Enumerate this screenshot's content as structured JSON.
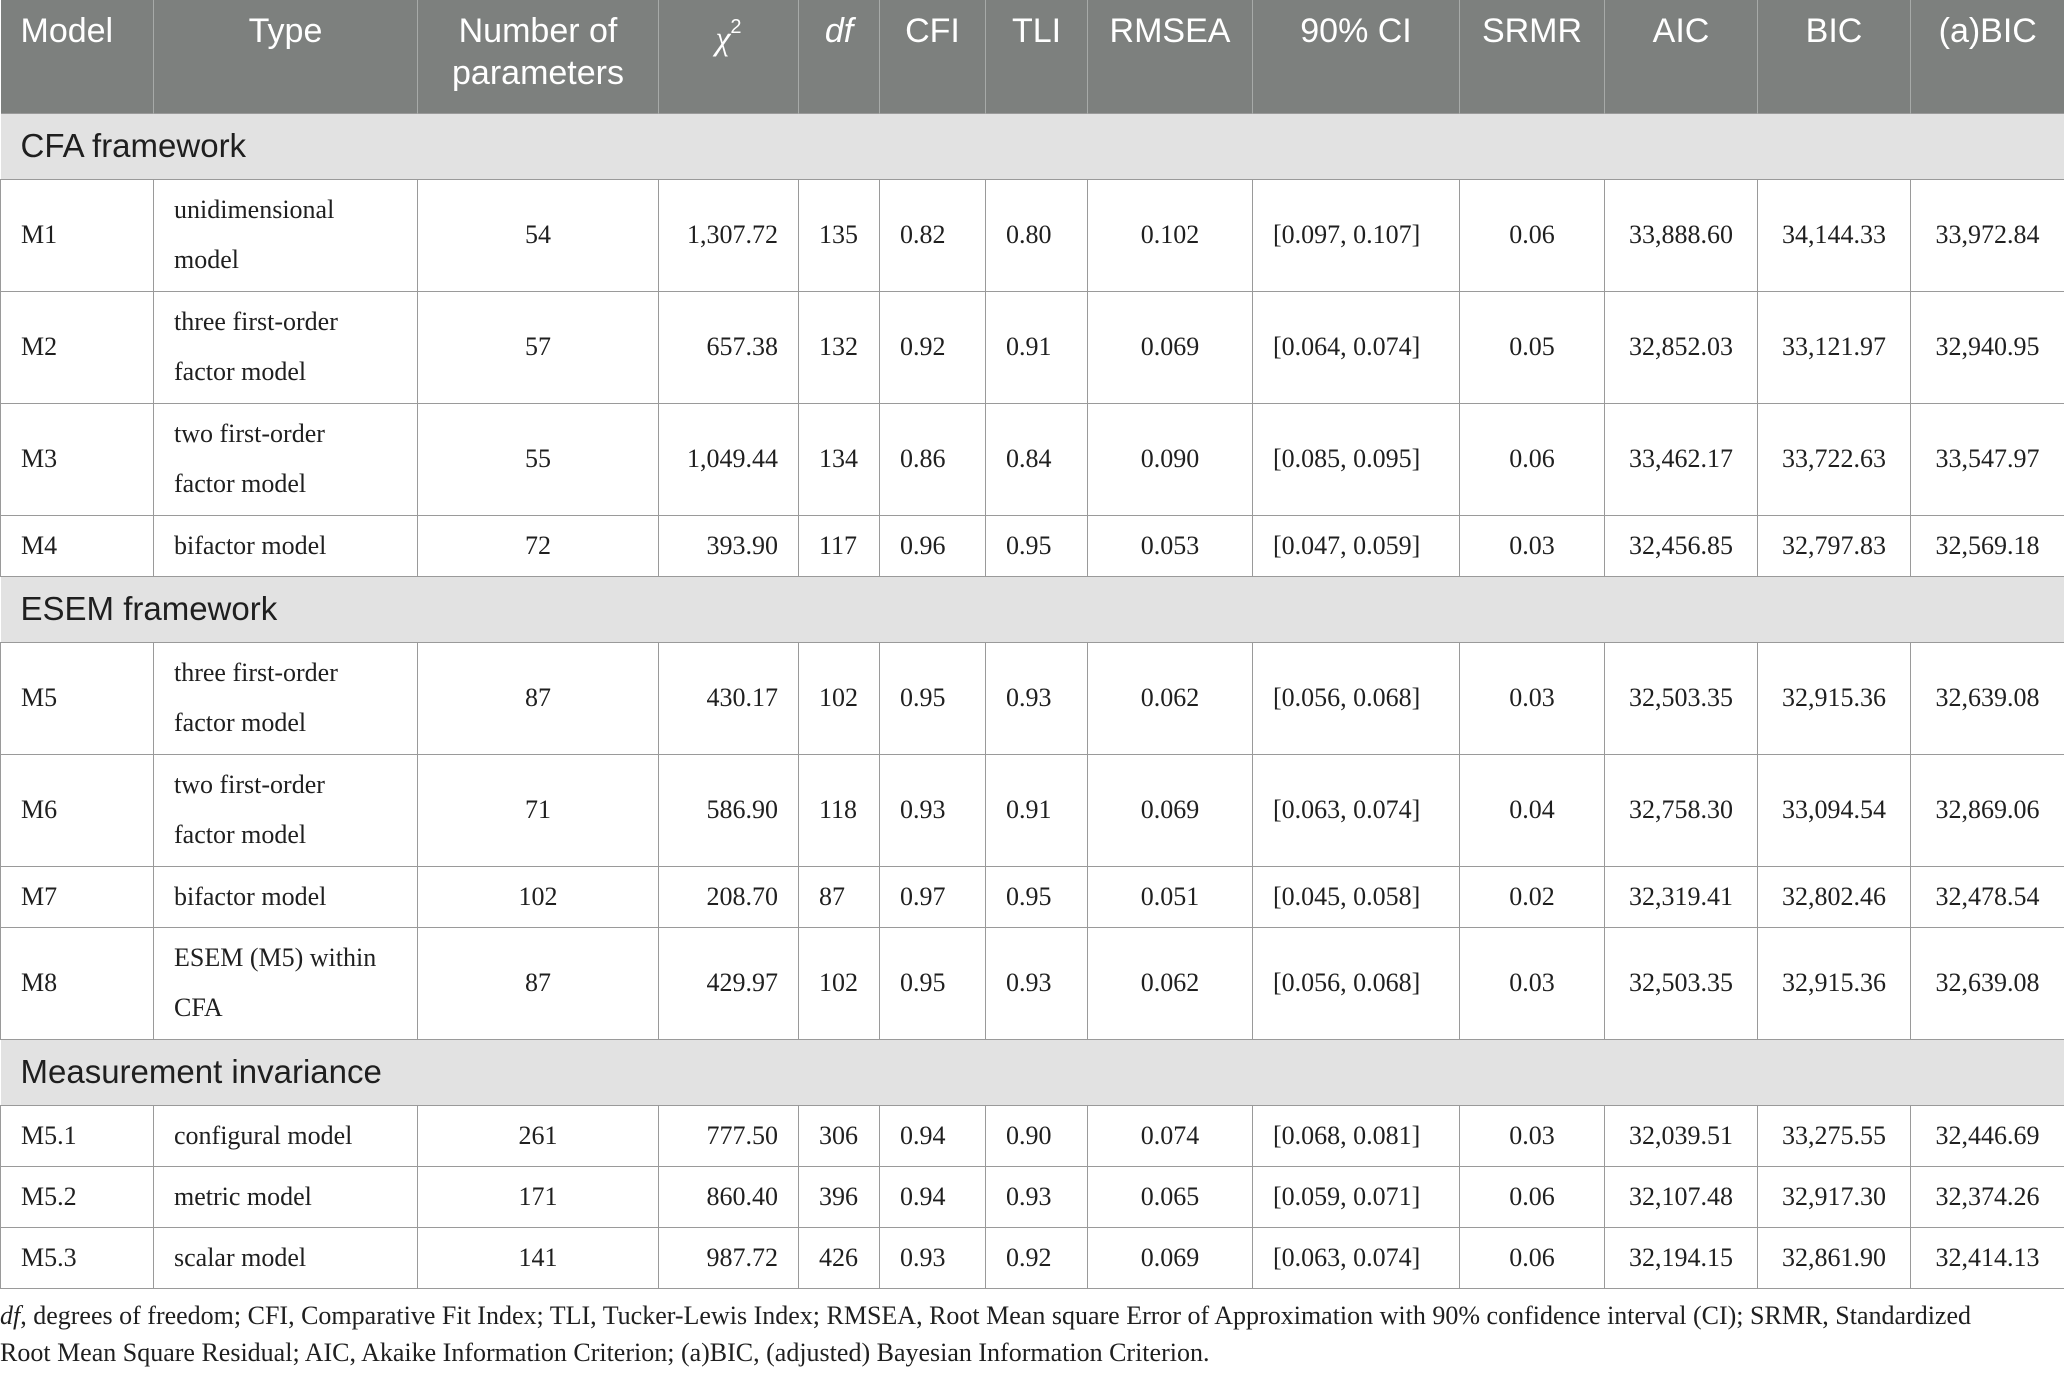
{
  "header": {
    "model": "Model",
    "type": "Type",
    "params_line1": "Number of",
    "params_line2": "parameters",
    "chi_symbol": "χ",
    "chi_sup": "2",
    "df": "df",
    "cfi": "CFI",
    "tli": "TLI",
    "rmsea": "RMSEA",
    "ci": "90% CI",
    "srmr": "SRMR",
    "aic": "AIC",
    "bic": "BIC",
    "abic": "(a)BIC"
  },
  "groups": [
    {
      "title": "CFA framework",
      "rows": [
        {
          "model": "M1",
          "type": [
            "unidimensional",
            "model"
          ],
          "params": "54",
          "chi": "1,307.72",
          "df": "135",
          "cfi": "0.82",
          "tli": "0.80",
          "rmsea": "0.102",
          "ci": "[0.097, 0.107]",
          "srmr": "0.06",
          "aic": "33,888.60",
          "bic": "34,144.33",
          "abic": "33,972.84"
        },
        {
          "model": "M2",
          "type": [
            "three first-order",
            "factor model"
          ],
          "params": "57",
          "chi": "657.38",
          "df": "132",
          "cfi": "0.92",
          "tli": "0.91",
          "rmsea": "0.069",
          "ci": "[0.064, 0.074]",
          "srmr": "0.05",
          "aic": "32,852.03",
          "bic": "33,121.97",
          "abic": "32,940.95"
        },
        {
          "model": "M3",
          "type": [
            "two first-order",
            "factor model"
          ],
          "params": "55",
          "chi": "1,049.44",
          "df": "134",
          "cfi": "0.86",
          "tli": "0.84",
          "rmsea": "0.090",
          "ci": "[0.085, 0.095]",
          "srmr": "0.06",
          "aic": "33,462.17",
          "bic": "33,722.63",
          "abic": "33,547.97"
        },
        {
          "model": "M4",
          "type": [
            "bifactor model"
          ],
          "params": "72",
          "chi": "393.90",
          "df": "117",
          "cfi": "0.96",
          "tli": "0.95",
          "rmsea": "0.053",
          "ci": "[0.047, 0.059]",
          "srmr": "0.03",
          "aic": "32,456.85",
          "bic": "32,797.83",
          "abic": "32,569.18"
        }
      ]
    },
    {
      "title": "ESEM framework",
      "rows": [
        {
          "model": "M5",
          "type": [
            "three first-order",
            "factor model"
          ],
          "params": "87",
          "chi": "430.17",
          "df": "102",
          "cfi": "0.95",
          "tli": "0.93",
          "rmsea": "0.062",
          "ci": "[0.056, 0.068]",
          "srmr": "0.03",
          "aic": "32,503.35",
          "bic": "32,915.36",
          "abic": "32,639.08"
        },
        {
          "model": "M6",
          "type": [
            "two first-order",
            "factor model"
          ],
          "params": "71",
          "chi": "586.90",
          "df": "118",
          "cfi": "0.93",
          "tli": "0.91",
          "rmsea": "0.069",
          "ci": "[0.063, 0.074]",
          "srmr": "0.04",
          "aic": "32,758.30",
          "bic": "33,094.54",
          "abic": "32,869.06"
        },
        {
          "model": "M7",
          "type": [
            "bifactor model"
          ],
          "params": "102",
          "chi": "208.70",
          "df": "87",
          "cfi": "0.97",
          "tli": "0.95",
          "rmsea": "0.051",
          "ci": "[0.045, 0.058]",
          "srmr": "0.02",
          "aic": "32,319.41",
          "bic": "32,802.46",
          "abic": "32,478.54"
        },
        {
          "model": "M8",
          "type": [
            "ESEM (M5) within",
            "CFA"
          ],
          "params": "87",
          "chi": "429.97",
          "df": "102",
          "cfi": "0.95",
          "tli": "0.93",
          "rmsea": "0.062",
          "ci": "[0.056, 0.068]",
          "srmr": "0.03",
          "aic": "32,503.35",
          "bic": "32,915.36",
          "abic": "32,639.08"
        }
      ]
    },
    {
      "title": "Measurement invariance",
      "rows": [
        {
          "model": "M5.1",
          "type": [
            "configural model"
          ],
          "params": "261",
          "chi": "777.50",
          "df": "306",
          "cfi": "0.94",
          "tli": "0.90",
          "rmsea": "0.074",
          "ci": "[0.068, 0.081]",
          "srmr": "0.03",
          "aic": "32,039.51",
          "bic": "33,275.55",
          "abic": "32,446.69"
        },
        {
          "model": "M5.2",
          "type": [
            "metric model"
          ],
          "params": "171",
          "chi": "860.40",
          "df": "396",
          "cfi": "0.94",
          "tli": "0.93",
          "rmsea": "0.065",
          "ci": "[0.059, 0.071]",
          "srmr": "0.06",
          "aic": "32,107.48",
          "bic": "32,917.30",
          "abic": "32,374.26"
        },
        {
          "model": "M5.3",
          "type": [
            "scalar model"
          ],
          "params": "141",
          "chi": "987.72",
          "df": "426",
          "cfi": "0.93",
          "tli": "0.92",
          "rmsea": "0.069",
          "ci": "[0.063, 0.074]",
          "srmr": "0.06",
          "aic": "32,194.15",
          "bic": "32,861.90",
          "abic": "32,414.13"
        }
      ]
    }
  ],
  "note": {
    "df_abbrev": "df",
    "text_line1": ", degrees of freedom; CFI, Comparative Fit Index; TLI, Tucker-Lewis Index; RMSEA, Root Mean square Error of Approximation with 90% confidence interval (CI); SRMR, Standardized",
    "text_line2": "Root Mean Square Residual; AIC, Akaike Information Criterion; (a)BIC, (adjusted) Bayesian Information Criterion."
  }
}
